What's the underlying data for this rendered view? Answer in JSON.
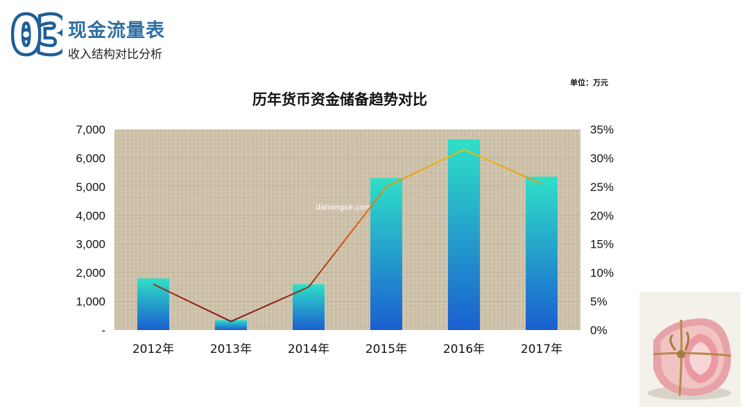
{
  "header": {
    "section_number": "03",
    "title": "现金流量表",
    "subtitle": "收入结构对比分析"
  },
  "unit_label": "单位：万元",
  "watermark": "dahongse.com",
  "colors": {
    "accent": "#2f6fa3",
    "bar_top": "#2fe0c8",
    "bar_bottom": "#1a5fd0",
    "line_low": "#7a1010",
    "line_high": "#f2c400",
    "plot_bg": "#cbbfa8"
  },
  "photo_icon": "rolled-banknotes-image",
  "chart_data": {
    "type": "bar",
    "title": "历年货币资金储备趋势对比",
    "categories": [
      "2012年",
      "2013年",
      "2014年",
      "2015年",
      "2016年",
      "2017年"
    ],
    "series": [
      {
        "type": "bar",
        "axis": "left",
        "values": [
          1800,
          350,
          1600,
          5300,
          6650,
          5350
        ]
      },
      {
        "type": "line",
        "axis": "right",
        "values": [
          0.08,
          0.015,
          0.075,
          0.25,
          0.315,
          0.255
        ]
      }
    ],
    "y_left": {
      "min": 0,
      "max": 7000,
      "ticks": [
        "-",
        "1,000",
        "2,000",
        "3,000",
        "4,000",
        "5,000",
        "6,000",
        "7,000"
      ]
    },
    "y_right": {
      "min": 0,
      "max": 0.35,
      "ticks": [
        "0%",
        "5%",
        "10%",
        "15%",
        "20%",
        "25%",
        "30%",
        "35%"
      ]
    },
    "grid": true,
    "legend": "none"
  }
}
